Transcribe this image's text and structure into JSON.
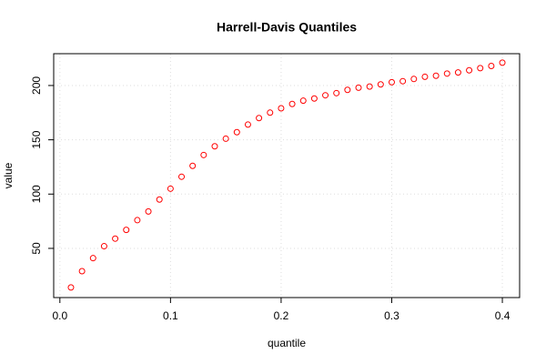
{
  "chart_data": {
    "type": "scatter",
    "title": "Harrell-Davis Quantiles",
    "x_label": "quantile",
    "y_label": "value",
    "series": [
      {
        "color": "#ff0000",
        "x": [
          0.01,
          0.02,
          0.03,
          0.04,
          0.05,
          0.06,
          0.07,
          0.08,
          0.09,
          0.1,
          0.11,
          0.12,
          0.13,
          0.14,
          0.15,
          0.16,
          0.17,
          0.18,
          0.19,
          0.2,
          0.21,
          0.22,
          0.23,
          0.24,
          0.25,
          0.26,
          0.27,
          0.28,
          0.29,
          0.3,
          0.31,
          0.32,
          0.33,
          0.34,
          0.35,
          0.36,
          0.37,
          0.38,
          0.39,
          0.4
        ],
        "values": [
          14,
          29,
          41,
          52,
          59,
          67,
          76,
          84,
          95,
          105,
          116,
          126,
          136,
          144,
          151,
          157,
          164,
          170,
          175,
          179,
          183,
          186,
          188,
          191,
          193,
          196,
          198,
          199,
          201,
          203,
          204,
          206,
          208,
          209,
          211,
          212,
          214,
          216,
          218,
          221
        ]
      }
    ],
    "xlim": [
      -0.0056,
      0.4156
    ],
    "ylim": [
      4.7,
      229.3
    ],
    "xticks": [
      {
        "value": 0,
        "label": "0.0"
      },
      0.1,
      0.2,
      0.3,
      0.4
    ],
    "yticks": [
      50,
      100,
      150,
      200
    ],
    "grid": true
  }
}
